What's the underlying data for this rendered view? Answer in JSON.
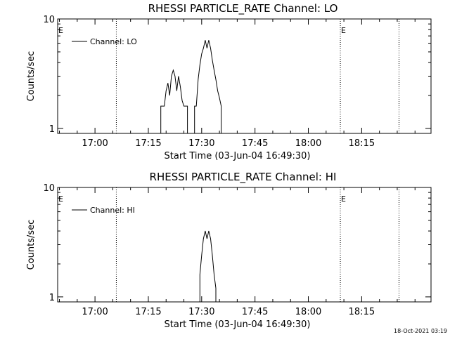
{
  "footer_timestamp": "18-Oct-2021 03:19",
  "chart_data": [
    {
      "type": "line",
      "title": "RHESSI PARTICLE_RATE Channel: LO",
      "xlabel": "Start Time (03-Jun-04 16:49:30)",
      "ylabel": "Counts/sec",
      "ylog": true,
      "ylim": [
        0.9,
        10
      ],
      "xlim_min": [
        0,
        105
      ],
      "yticks": [
        {
          "v": 1,
          "label": "1"
        },
        {
          "v": 10,
          "label": "10"
        }
      ],
      "xticks": [
        {
          "v": 10.5,
          "label": "17:00"
        },
        {
          "v": 25.5,
          "label": "17:15"
        },
        {
          "v": 40.5,
          "label": "17:30"
        },
        {
          "v": 55.5,
          "label": "17:45"
        },
        {
          "v": 70.5,
          "label": "18:00"
        },
        {
          "v": 85.5,
          "label": "18:15"
        }
      ],
      "vlines": [
        16.5,
        79.5,
        96
      ],
      "markers": [
        {
          "x": 0,
          "text": "E"
        },
        {
          "x": 79.5,
          "text": "E"
        }
      ],
      "legend": {
        "label": "Channel: LO",
        "position": "top-left"
      },
      "series": [
        {
          "x": [
            29.0,
            29.0,
            30.0,
            30.5,
            31.0,
            31.5,
            32.0,
            32.5,
            33.0,
            33.5,
            34.0,
            34.5,
            35.0,
            35.5,
            36.0,
            36.5,
            36.5,
            38.5,
            38.5,
            39.0,
            39.5,
            40.0,
            40.5,
            41.0,
            41.5,
            42.0,
            42.5,
            43.0,
            43.5,
            44.0,
            44.5,
            45.0,
            45.5,
            46.0,
            46.0
          ],
          "y": [
            0.9,
            1.6,
            1.6,
            2.2,
            2.6,
            2.0,
            3.0,
            3.4,
            3.0,
            2.2,
            3.0,
            2.4,
            1.8,
            1.6,
            1.6,
            1.6,
            0.9,
            0.9,
            1.6,
            1.6,
            2.8,
            3.8,
            4.8,
            5.4,
            6.4,
            5.4,
            6.4,
            5.4,
            4.2,
            3.4,
            2.8,
            2.2,
            1.9,
            1.6,
            0.9
          ]
        }
      ]
    },
    {
      "type": "line",
      "title": "RHESSI PARTICLE_RATE Channel: HI",
      "xlabel": "Start Time (03-Jun-04 16:49:30)",
      "ylabel": "Counts/sec",
      "ylog": true,
      "ylim": [
        0.9,
        10
      ],
      "xlim_min": [
        0,
        105
      ],
      "yticks": [
        {
          "v": 1,
          "label": "1"
        },
        {
          "v": 10,
          "label": "10"
        }
      ],
      "xticks": [
        {
          "v": 10.5,
          "label": "17:00"
        },
        {
          "v": 25.5,
          "label": "17:15"
        },
        {
          "v": 40.5,
          "label": "17:30"
        },
        {
          "v": 55.5,
          "label": "17:45"
        },
        {
          "v": 70.5,
          "label": "18:00"
        },
        {
          "v": 85.5,
          "label": "18:15"
        }
      ],
      "vlines": [
        16.5,
        79.5,
        96
      ],
      "markers": [
        {
          "x": 0,
          "text": "E"
        },
        {
          "x": 79.5,
          "text": "E"
        }
      ],
      "legend": {
        "label": "Channel: HI",
        "position": "top-left"
      },
      "series": [
        {
          "x": [
            40.0,
            40.0,
            40.5,
            41.0,
            41.5,
            42.0,
            42.5,
            43.0,
            43.5,
            44.0,
            44.5,
            44.5
          ],
          "y": [
            0.9,
            1.6,
            2.4,
            3.4,
            4.0,
            3.4,
            4.0,
            3.4,
            2.4,
            1.6,
            1.2,
            0.9
          ]
        }
      ]
    }
  ]
}
